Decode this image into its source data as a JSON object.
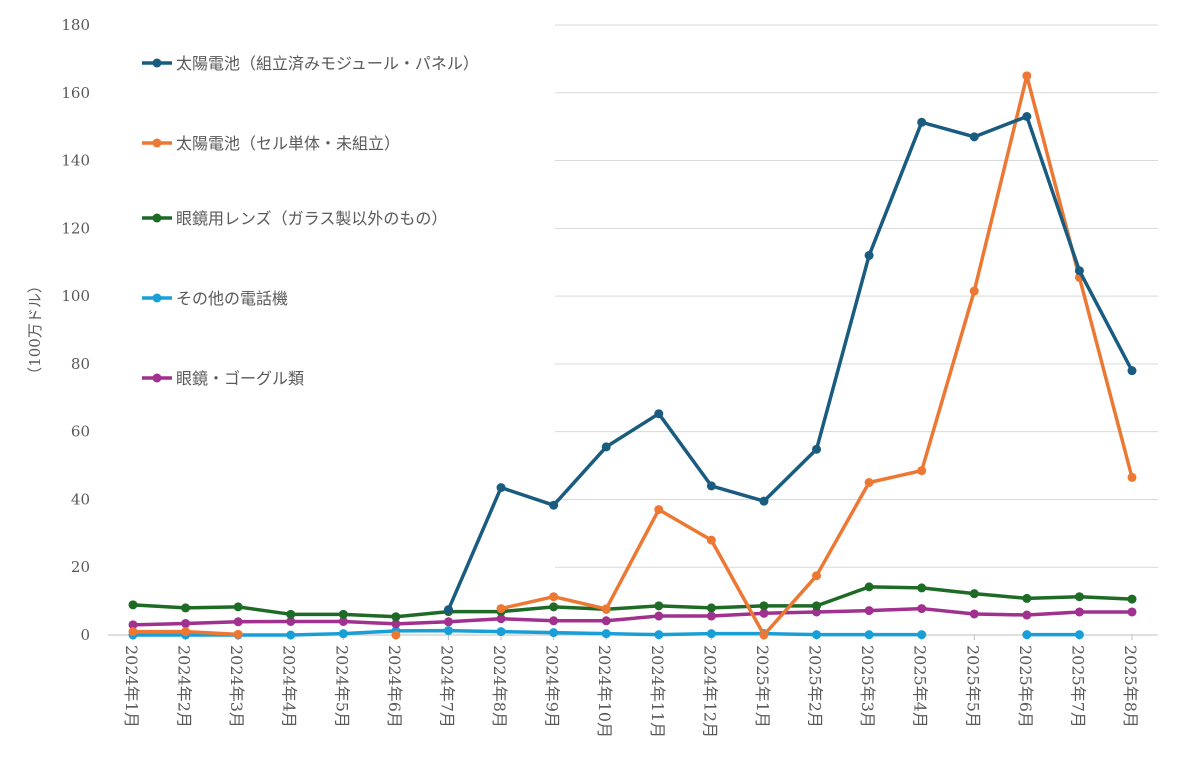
{
  "chart_data": {
    "type": "line",
    "ylabel": "（100万ドル）",
    "ylim": [
      0,
      180
    ],
    "yticks": [
      0,
      20,
      40,
      60,
      80,
      100,
      120,
      140,
      160,
      180
    ],
    "grid": true,
    "legend_placement": "left",
    "categories": [
      "2024年1月",
      "2024年2月",
      "2024年3月",
      "2024年4月",
      "2024年5月",
      "2024年6月",
      "2024年7月",
      "2024年8月",
      "2024年9月",
      "2024年10月",
      "2024年11月",
      "2024年12月",
      "2025年1月",
      "2025年2月",
      "2025年3月",
      "2025年4月",
      "2025年5月",
      "2025年6月",
      "2025年7月",
      "2025年8月"
    ],
    "series": [
      {
        "name": "太陽電池（組立済みモジュール・パネル）",
        "color": "#1a5c80",
        "values": [
          null,
          null,
          null,
          null,
          null,
          null,
          7.5,
          43.5,
          38.3,
          55.5,
          65.3,
          44.0,
          39.5,
          54.8,
          112.0,
          151.3,
          147.0,
          153.0,
          107.5,
          78.0
        ]
      },
      {
        "name": "太陽電池（セル単体・未組立）",
        "color": "#ed7833",
        "values": [
          1.0,
          1.0,
          0.2,
          null,
          null,
          0,
          null,
          7.8,
          11.3,
          7.7,
          37.0,
          28.0,
          0,
          17.5,
          45.0,
          48.5,
          101.5,
          165.0,
          105.5,
          46.5
        ]
      },
      {
        "name": "眼鏡用レンズ（ガラス製以外のもの）",
        "color": "#1e6b26",
        "values": [
          8.9,
          8.0,
          8.3,
          6.1,
          6.1,
          5.4,
          6.9,
          6.9,
          8.3,
          7.6,
          8.6,
          8.0,
          8.6,
          8.6,
          14.2,
          13.9,
          12.2,
          10.8,
          11.3,
          10.6
        ]
      },
      {
        "name": "その他の電話機",
        "color": "#199fd8",
        "values": [
          0,
          0,
          0,
          0,
          0.4,
          1.2,
          1.3,
          1.0,
          0.7,
          0.4,
          0.1,
          0.4,
          0.4,
          0.1,
          0.1,
          0.1,
          null,
          0.1,
          0.1,
          null
        ]
      },
      {
        "name": "眼鏡・ゴーグル類",
        "color": "#a0318f",
        "values": [
          3.0,
          3.4,
          3.9,
          4.0,
          4.0,
          3.3,
          3.9,
          4.8,
          4.2,
          4.2,
          5.6,
          5.6,
          6.4,
          6.8,
          7.2,
          7.8,
          6.2,
          5.9,
          6.8,
          6.8
        ]
      }
    ]
  }
}
